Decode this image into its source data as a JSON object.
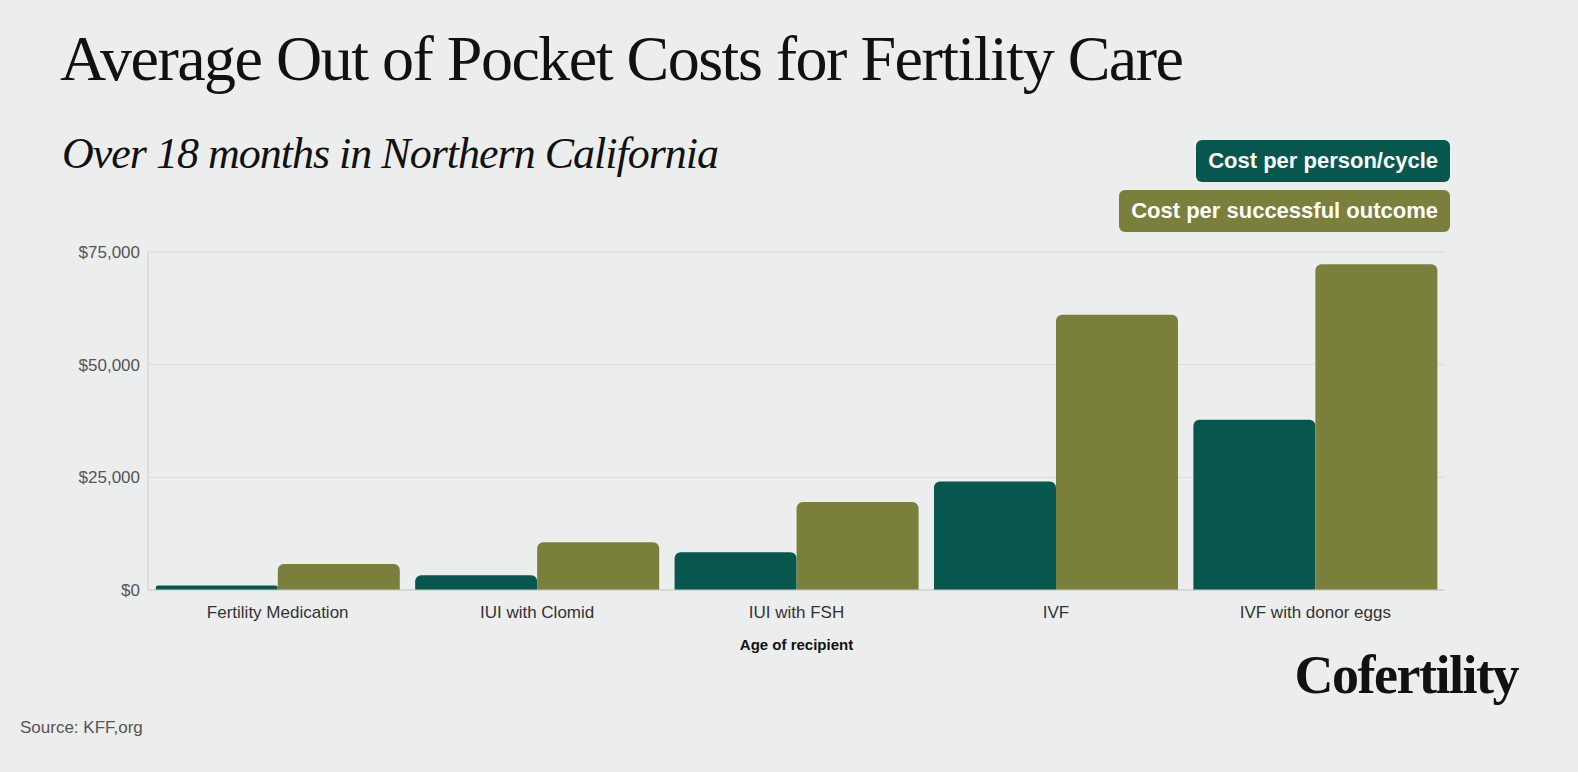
{
  "chart_data": {
    "type": "bar",
    "title": "Average Out of Pocket Costs for Fertility Care",
    "subtitle": "Over 18 months in Northern California",
    "x_label": "Age of recipient",
    "annotations": [
      "Source: KFF,org",
      "Cofertility"
    ],
    "categories": [
      "Fertility Medication",
      "IUI with Clomid",
      "IUI with FSH",
      "IVF",
      "IVF with donor eggs"
    ],
    "series": [
      {
        "name": "Cost per person/cycle",
        "color": "#07574f",
        "values": [
          1000,
          3300,
          8400,
          24100,
          37800
        ]
      },
      {
        "name": "Cost per successful outcome",
        "color": "#7a803c",
        "values": [
          5750,
          10600,
          19500,
          61100,
          72300
        ]
      }
    ],
    "ylim": [
      0,
      75000
    ],
    "yticks": [
      {
        "value": 0,
        "label": "$0"
      },
      {
        "value": 25000,
        "label": "$25,000"
      },
      {
        "value": 50000,
        "label": "$50,000"
      },
      {
        "value": 75000,
        "label": "$75,000"
      }
    ],
    "grid": true,
    "legend": "top-right"
  }
}
